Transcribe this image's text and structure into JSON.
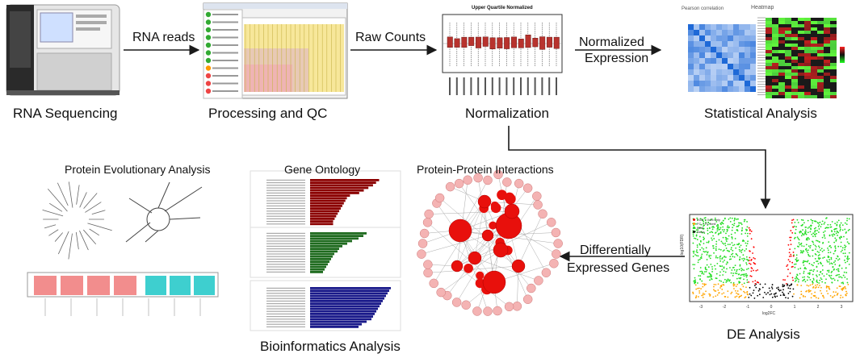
{
  "stages": {
    "sequencing": "RNA Sequencing",
    "processing": "Processing and QC",
    "normalization": "Normalization",
    "statistical": "Statistical Analysis",
    "de": "DE  Analysis",
    "bioinformatics": "Bioinformatics Analysis"
  },
  "edges": {
    "rna_reads": "RNA reads",
    "raw_counts": "Raw Counts",
    "normalized_expression_1": "Normalized",
    "normalized_expression_2": "Expression",
    "de_genes_1": "Differentially",
    "de_genes_2": "Expressed Genes"
  },
  "sub_analyses": {
    "evolutionary": "Protein Evolutionary Analysis",
    "gene_ontology": "Gene Ontology",
    "ppi": "Protein-Protein Interactions"
  },
  "thumbnails": {
    "normalization_title": "Upper Quartile Normalized",
    "heatmap_title_left": "Pearson correlation",
    "heatmap_title_right": "Heatmap",
    "volcano_xlabel": "log2FC",
    "volcano_ylabel": "-log10(FDR)",
    "volcano_legend": [
      "FDR < 0.05 only",
      "FC > FC limit",
      "Both",
      "None"
    ],
    "volcano_xticks": [
      "-3",
      "-2",
      "-1",
      "0",
      "1",
      "2",
      "3"
    ]
  },
  "colors": {
    "arrow": "#1a1a1a",
    "box_red": "#b8332e",
    "node_red": "#e8100c",
    "node_pink": "#f4b3b3",
    "go_red": "#8b0000",
    "go_green": "#1f6b1f",
    "go_blue": "#1a1a8a",
    "volcano_green": "#22dd22",
    "volcano_red": "#ff0000",
    "volcano_orange": "#ffa500",
    "bar_pink": "#f28d8d",
    "bar_teal": "#3ecfcf"
  }
}
